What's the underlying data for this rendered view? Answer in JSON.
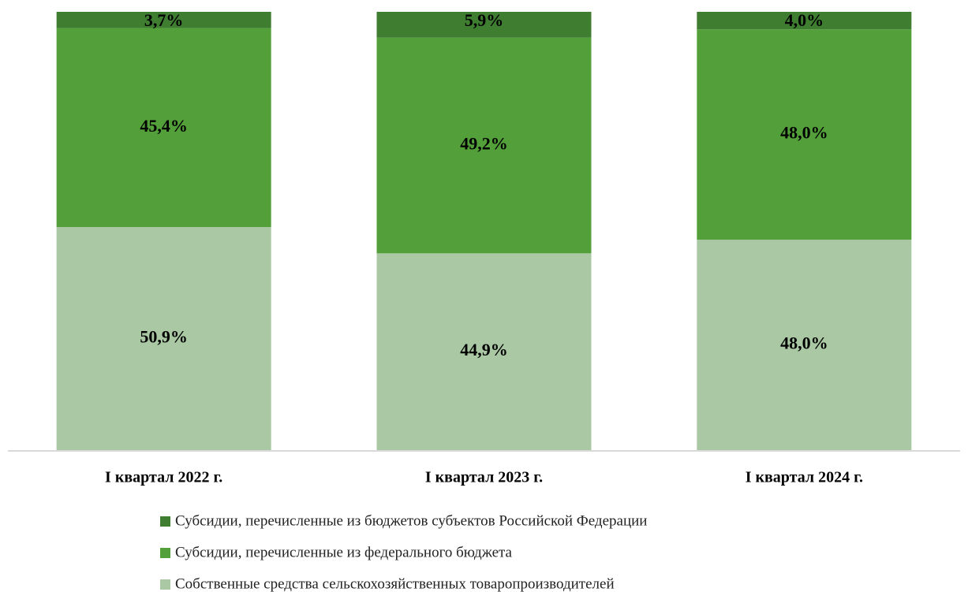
{
  "chart_data": {
    "type": "stacked_bar",
    "categories": [
      "I квартал 2022 г.",
      "I квартал 2023 г.",
      "I квартал 2024 г."
    ],
    "series": [
      {
        "name": "Собственные средства сельскохозяйственных товаропроизводителей",
        "color": "#a9c8a3",
        "values": [
          50.9,
          44.9,
          48.0
        ],
        "value_labels": [
          "50,9%",
          "44,9%",
          "48,0%"
        ]
      },
      {
        "name": "Субсидии, перечисленные из федерального бюджета",
        "color": "#53a03a",
        "values": [
          45.4,
          49.2,
          48.0
        ],
        "value_labels": [
          "45,4%",
          "49,2%",
          "48,0%"
        ]
      },
      {
        "name": "Субсидии, перечисленные из бюджетов субъектов Российской Федерации",
        "color": "#3f7d31",
        "values": [
          3.7,
          5.9,
          4.0
        ],
        "value_labels": [
          "3,7%",
          "5,9%",
          "4,0%"
        ]
      }
    ],
    "legend": "bottom"
  }
}
